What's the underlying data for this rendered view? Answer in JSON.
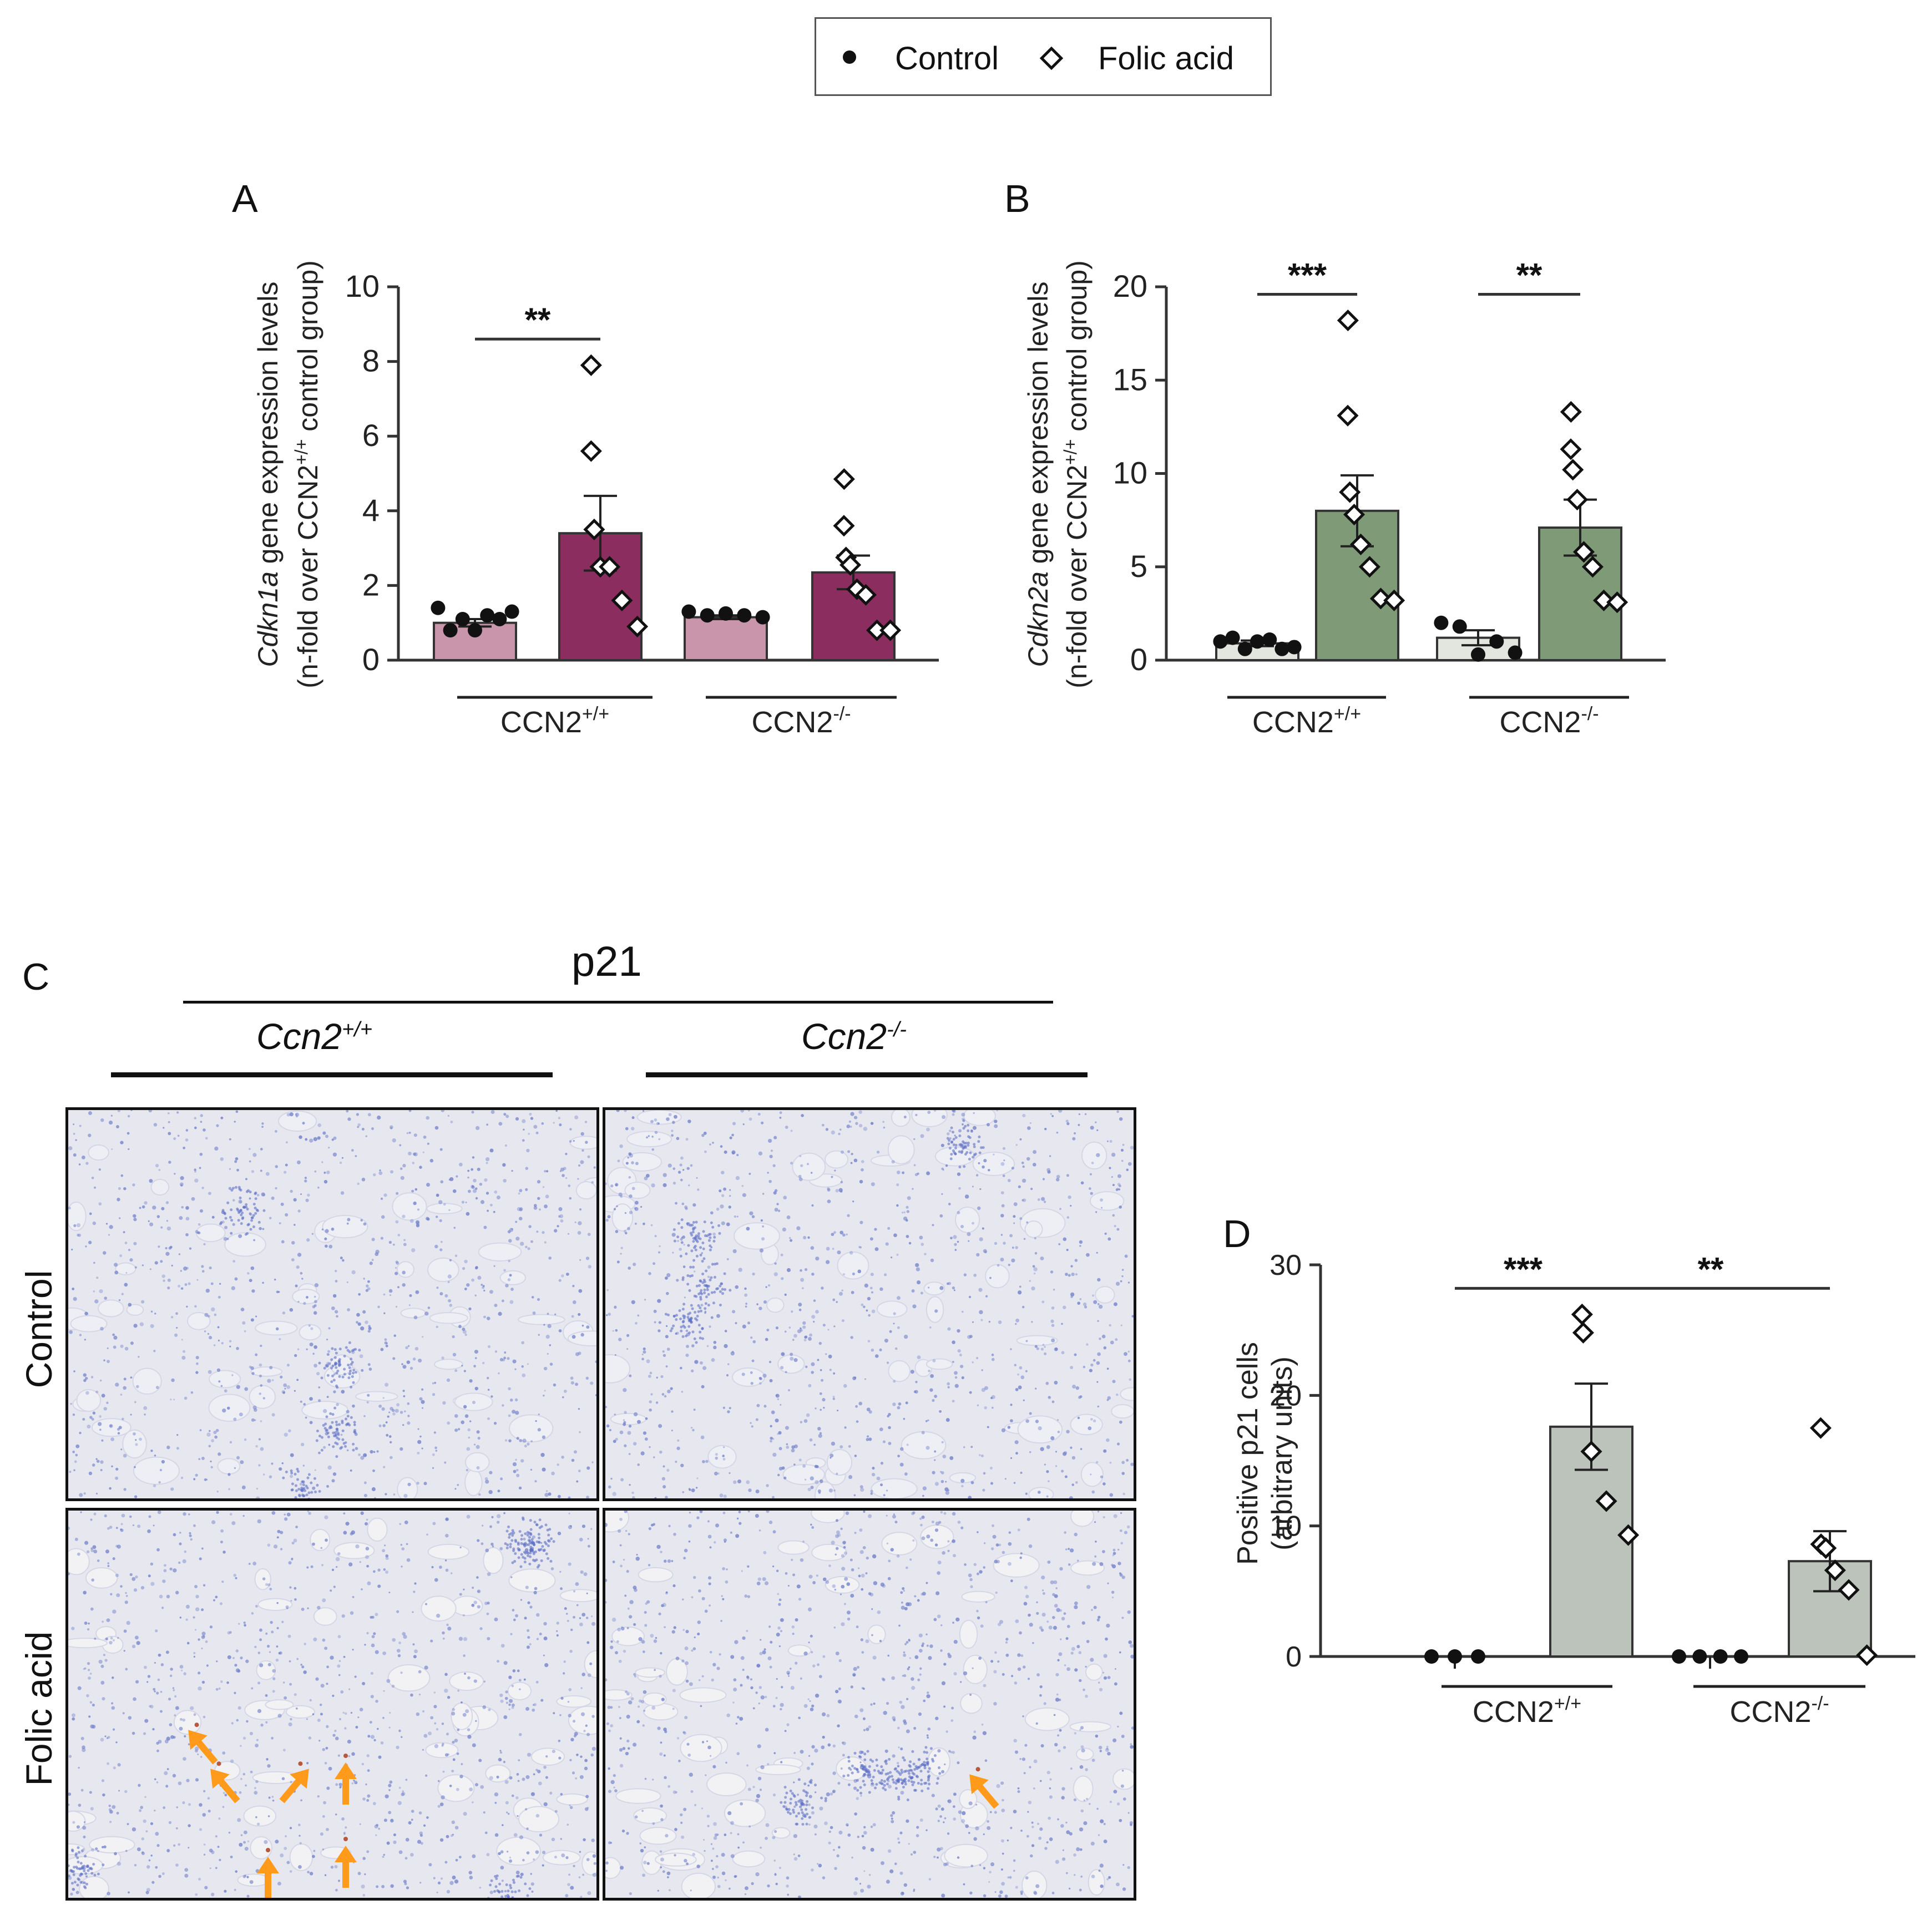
{
  "legend": {
    "items": [
      {
        "label": "Control",
        "marker": "filled-circle"
      },
      {
        "label": "Folic acid",
        "marker": "open-diamond"
      }
    ]
  },
  "panels": {
    "C": {
      "letter": "C",
      "stain": "p21",
      "genotypes": [
        {
          "base": "Ccn2",
          "sup": "+/+"
        },
        {
          "base": "Ccn2",
          "sup": "-/-"
        }
      ],
      "rows": [
        "Control",
        "Folic acid"
      ]
    }
  },
  "colors": {
    "control_bar_A": "#c995ab",
    "fa_bar_A": "#8b2d5e",
    "control_bar_B": "#e3e6de",
    "fa_bar_B": "#7f9a77",
    "bars_D": "#bcc3bb",
    "arrow": "#ff9a1a",
    "tissue_bg": "#e6e7ef",
    "nuclei": "#6f7fc9"
  },
  "chart_data": [
    {
      "id": "A",
      "letter": "A",
      "type": "bar",
      "ylabel_italic": "Cdkn1a",
      "ylabel_rest": " gene expression levels",
      "ylabel2_base": "(n-fold over CCN2",
      "ylabel2_sup": "+/+",
      "ylabel2_end": " control group)",
      "ylim": [
        0,
        10
      ],
      "yticks": [
        0,
        2,
        4,
        6,
        8,
        10
      ],
      "groups": [
        {
          "base": "CCN2",
          "sup": "+/+"
        },
        {
          "base": "CCN2",
          "sup": "-/-"
        }
      ],
      "bars": [
        {
          "group": 0,
          "condition": "Control",
          "mean": 1.0,
          "sem": 0.1,
          "points": [
            1.4,
            0.8,
            1.1,
            0.8,
            1.2,
            1.1,
            1.3
          ]
        },
        {
          "group": 0,
          "condition": "Folic acid",
          "mean": 3.4,
          "sem": 1.0,
          "points": [
            7.9,
            5.6,
            3.5,
            2.5,
            2.5,
            1.6,
            0.9
          ]
        },
        {
          "group": 1,
          "condition": "Control",
          "mean": 1.15,
          "sem": 0.05,
          "points": [
            1.3,
            1.2,
            1.25,
            1.2,
            1.15
          ]
        },
        {
          "group": 1,
          "condition": "Folic acid",
          "mean": 2.35,
          "sem": 0.45,
          "points": [
            4.85,
            3.6,
            2.75,
            2.55,
            1.9,
            1.75,
            0.8,
            0.8
          ]
        }
      ],
      "significance": [
        {
          "label": "**",
          "from": 0,
          "to": 1,
          "y": 8.6
        }
      ]
    },
    {
      "id": "B",
      "letter": "B",
      "type": "bar",
      "ylabel_italic": "Cdkn2a",
      "ylabel_rest": " gene expression levels",
      "ylabel2_base": "(n-fold over CCN2",
      "ylabel2_sup": "+/+",
      "ylabel2_end": " control group)",
      "ylim": [
        0,
        20
      ],
      "yticks": [
        0,
        5,
        10,
        15,
        20
      ],
      "groups": [
        {
          "base": "CCN2",
          "sup": "+/+"
        },
        {
          "base": "CCN2",
          "sup": "-/-"
        }
      ],
      "bars": [
        {
          "group": 0,
          "condition": "Control",
          "mean": 0.9,
          "sem": 0.15,
          "points": [
            1.0,
            1.2,
            0.6,
            1.0,
            1.1,
            0.6,
            0.7
          ]
        },
        {
          "group": 0,
          "condition": "Folic acid",
          "mean": 8.0,
          "sem": 1.9,
          "points": [
            18.2,
            13.1,
            9.0,
            7.8,
            6.2,
            5.0,
            3.3,
            3.2
          ]
        },
        {
          "group": 1,
          "condition": "Control",
          "mean": 1.2,
          "sem": 0.4,
          "points": [
            2.0,
            1.8,
            0.3,
            1.0,
            0.4
          ]
        },
        {
          "group": 1,
          "condition": "Folic acid",
          "mean": 7.1,
          "sem": 1.5,
          "points": [
            13.3,
            11.3,
            10.2,
            8.6,
            5.8,
            5.0,
            3.2,
            3.1
          ]
        }
      ],
      "significance": [
        {
          "label": "***",
          "from": 0,
          "to": 1,
          "y": 19.6
        },
        {
          "label": "**",
          "from": 2,
          "to": 3,
          "y": 19.6
        }
      ]
    },
    {
      "id": "D",
      "letter": "D",
      "type": "bar",
      "ylabel1": "Positive p21 cells",
      "ylabel2": "(arbitrary units)",
      "ylim": [
        0,
        30
      ],
      "yticks": [
        0,
        10,
        20,
        30
      ],
      "groups": [
        {
          "base": "CCN2",
          "sup": "+/+"
        },
        {
          "base": "CCN2",
          "sup": "-/-"
        }
      ],
      "bars": [
        {
          "group": 0,
          "condition": "Control",
          "mean": 0,
          "sem": 0,
          "points": [
            0,
            0,
            0
          ]
        },
        {
          "group": 0,
          "condition": "Folic acid",
          "mean": 17.6,
          "sem": 3.3,
          "points": [
            26.2,
            24.8,
            15.7,
            11.9,
            9.3
          ]
        },
        {
          "group": 1,
          "condition": "Control",
          "mean": 0,
          "sem": 0,
          "points": [
            0,
            0,
            0,
            0
          ]
        },
        {
          "group": 1,
          "condition": "Folic acid",
          "mean": 7.3,
          "sem": 2.3,
          "points": [
            17.5,
            8.6,
            8.3,
            6.6,
            5.1,
            0.1
          ]
        }
      ],
      "significance": [
        {
          "label": "***",
          "from": 0,
          "to": 1,
          "y": 28.2
        },
        {
          "label": "**",
          "from": 1,
          "to": 3,
          "y": 28.2
        }
      ]
    }
  ]
}
